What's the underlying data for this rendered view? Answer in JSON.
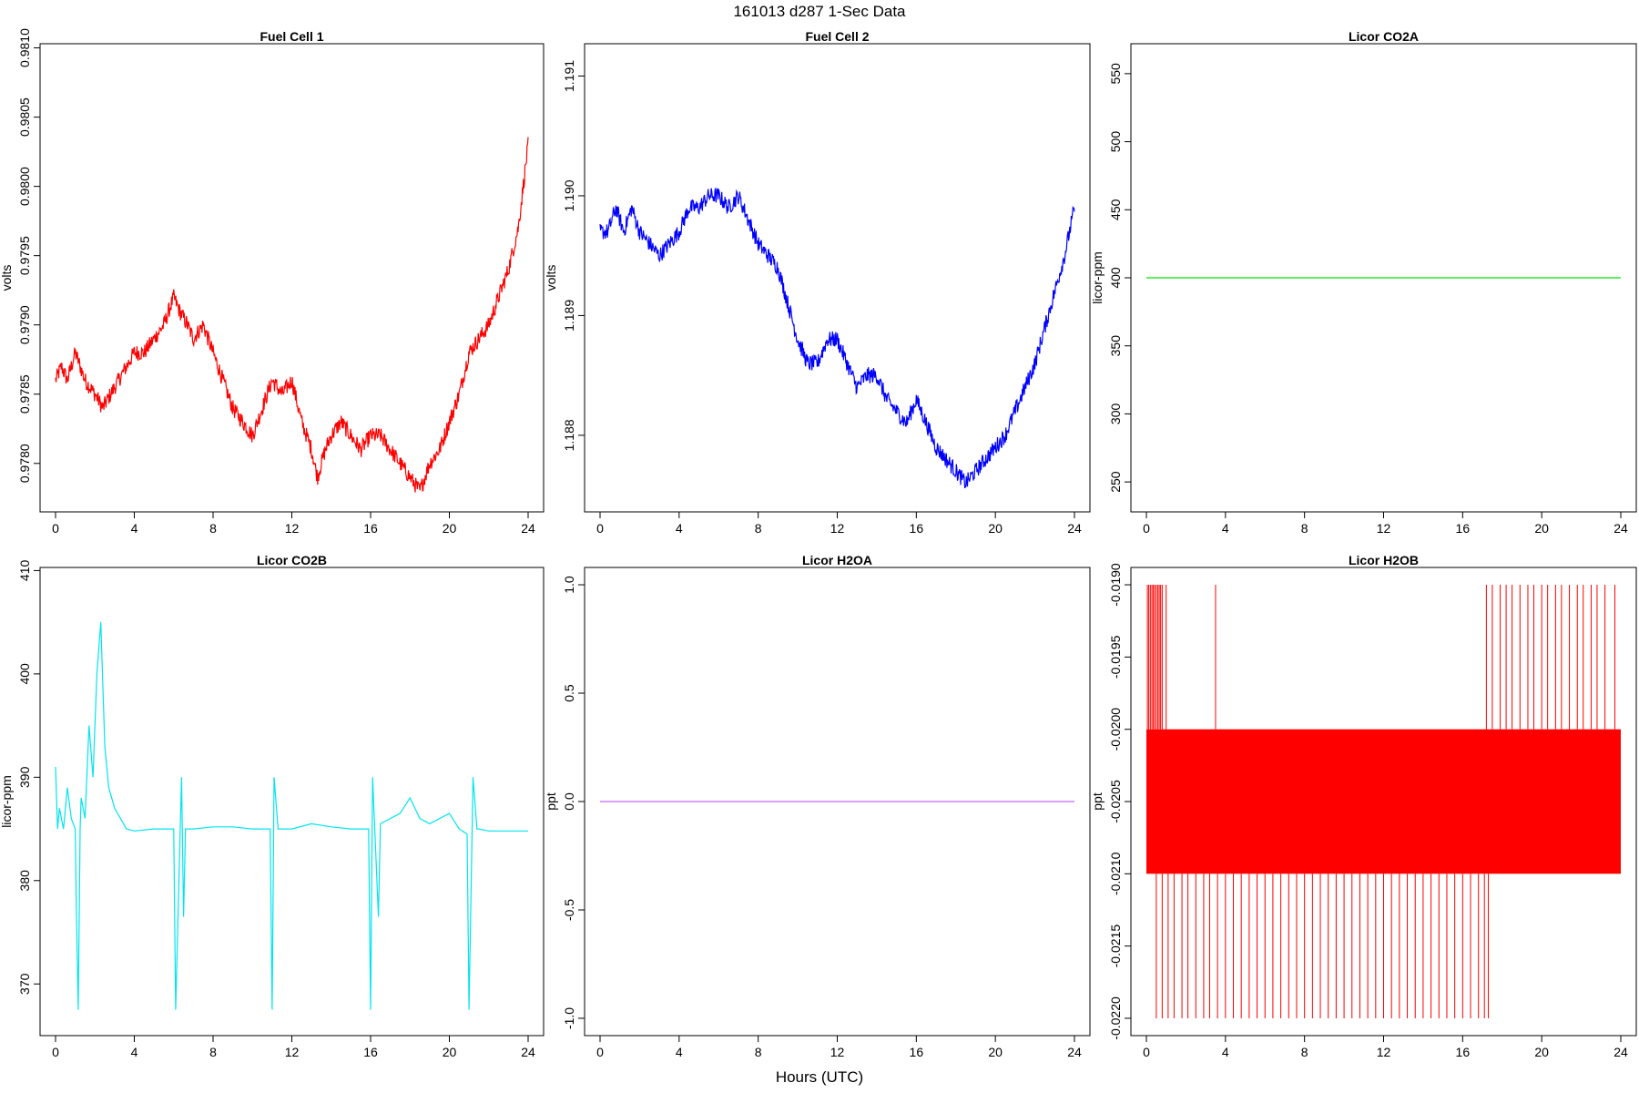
{
  "suptitle": "161013   d287   1-Sec Data",
  "xlabel": "Hours (UTC)",
  "chart_data": [
    {
      "type": "line",
      "title": "Fuel Cell 1",
      "ylabel": "volts",
      "color": "#ff0000",
      "xlim": [
        0,
        24
      ],
      "ylim": [
        0.97765,
        0.98103
      ],
      "x_ticks": [
        0,
        4,
        8,
        12,
        16,
        20,
        24
      ],
      "x_tick_labels": [
        "0",
        "4",
        "8",
        "12",
        "16",
        "20",
        "24"
      ],
      "y_ticks": [
        0.978,
        0.9785,
        0.979,
        0.9795,
        0.98,
        0.9805,
        0.981
      ],
      "y_tick_labels": [
        "0.9780",
        "0.9785",
        "0.9790",
        "0.9795",
        "0.9800",
        "0.9805",
        "0.9810"
      ],
      "series": [
        {
          "x": [
            0,
            0.3,
            0.6,
            1.0,
            1.5,
            2.0,
            2.4,
            2.8,
            3.2,
            3.6,
            4.0,
            4.5,
            5.0,
            5.5,
            6.0,
            6.3,
            6.7,
            7.0,
            7.5,
            8.0,
            8.5,
            9.0,
            9.5,
            10.0,
            10.5,
            11.0,
            11.5,
            12.0,
            12.5,
            13.0,
            13.3,
            13.7,
            14.0,
            14.5,
            15.0,
            15.5,
            16.0,
            16.5,
            17.0,
            17.5,
            18.0,
            18.5,
            19.0,
            19.5,
            20.0,
            20.5,
            21.0,
            21.5,
            22.0,
            22.5,
            23.0,
            23.5,
            24.0
          ],
          "y": [
            0.9786,
            0.9787,
            0.9786,
            0.9788,
            0.9786,
            0.9785,
            0.9784,
            0.9785,
            0.9786,
            0.9787,
            0.9788,
            0.9788,
            0.9789,
            0.979,
            0.9792,
            0.9791,
            0.979,
            0.9789,
            0.979,
            0.9788,
            0.9786,
            0.9784,
            0.9783,
            0.9782,
            0.9784,
            0.9786,
            0.9785,
            0.9786,
            0.9783,
            0.9781,
            0.9779,
            0.9781,
            0.9782,
            0.9783,
            0.9782,
            0.9781,
            0.9782,
            0.9782,
            0.9781,
            0.978,
            0.9779,
            0.9778,
            0.978,
            0.9781,
            0.9783,
            0.9785,
            0.9788,
            0.9789,
            0.979,
            0.9792,
            0.9794,
            0.9797,
            0.9803
          ]
        }
      ]
    },
    {
      "type": "line",
      "title": "Fuel Cell 2",
      "ylabel": "volts",
      "color": "#0000ff",
      "xlim": [
        0,
        24
      ],
      "ylim": [
        1.18736,
        1.19127
      ],
      "x_ticks": [
        0,
        4,
        8,
        12,
        16,
        20,
        24
      ],
      "x_tick_labels": [
        "0",
        "4",
        "8",
        "12",
        "16",
        "20",
        "24"
      ],
      "y_ticks": [
        1.188,
        1.189,
        1.19,
        1.191
      ],
      "y_tick_labels": [
        "1.188",
        "1.189",
        "1.190",
        "1.191"
      ],
      "series": [
        {
          "x": [
            0,
            0.4,
            0.8,
            1.2,
            1.6,
            2.0,
            2.5,
            3.0,
            3.5,
            4.0,
            4.5,
            5.0,
            5.5,
            6.0,
            6.5,
            7.0,
            7.5,
            8.0,
            8.5,
            9.0,
            9.5,
            10.0,
            10.5,
            11.0,
            11.5,
            12.0,
            12.5,
            13.0,
            13.5,
            14.0,
            14.5,
            15.0,
            15.5,
            16.0,
            16.5,
            17.0,
            17.5,
            18.0,
            18.5,
            19.0,
            19.5,
            20.0,
            20.5,
            21.0,
            21.5,
            22.0,
            22.5,
            23.0,
            23.5,
            24.0
          ],
          "y": [
            1.1897,
            1.1897,
            1.1899,
            1.1897,
            1.1899,
            1.1897,
            1.1896,
            1.1895,
            1.1896,
            1.1897,
            1.1899,
            1.1899,
            1.19,
            1.19,
            1.1899,
            1.19,
            1.1898,
            1.1896,
            1.1895,
            1.1894,
            1.1891,
            1.1888,
            1.1886,
            1.1886,
            1.1888,
            1.1888,
            1.1886,
            1.1884,
            1.1885,
            1.1885,
            1.1883,
            1.1882,
            1.1881,
            1.1883,
            1.1881,
            1.1879,
            1.1878,
            1.1877,
            1.1876,
            1.1877,
            1.1878,
            1.1879,
            1.188,
            1.1882,
            1.1884,
            1.1886,
            1.1889,
            1.1892,
            1.1895,
            1.1899
          ]
        }
      ]
    },
    {
      "type": "line",
      "title": "Licor CO2A",
      "ylabel": "licor-ppm",
      "color": "#00e600",
      "xlim": [
        0,
        24
      ],
      "ylim": [
        228,
        572
      ],
      "x_ticks": [
        0,
        4,
        8,
        12,
        16,
        20,
        24
      ],
      "x_tick_labels": [
        "0",
        "4",
        "8",
        "12",
        "16",
        "20",
        "24"
      ],
      "y_ticks": [
        250,
        300,
        350,
        400,
        450,
        500,
        550
      ],
      "y_tick_labels": [
        "250",
        "300",
        "350",
        "400",
        "450",
        "500",
        "550"
      ],
      "series": [
        {
          "x": [
            0,
            24
          ],
          "y": [
            400,
            400
          ]
        }
      ]
    },
    {
      "type": "line",
      "title": "Licor CO2B",
      "ylabel": "licor-ppm",
      "color": "#00e5ee",
      "xlim": [
        0,
        24
      ],
      "ylim": [
        365,
        410.3
      ],
      "x_ticks": [
        0,
        4,
        8,
        12,
        16,
        20,
        24
      ],
      "x_tick_labels": [
        "0",
        "4",
        "8",
        "12",
        "16",
        "20",
        "24"
      ],
      "y_ticks": [
        370,
        380,
        390,
        400,
        410
      ],
      "y_tick_labels": [
        "370",
        "380",
        "390",
        "400",
        "410"
      ],
      "series": [
        {
          "x": [
            0,
            0.1,
            0.2,
            0.4,
            0.6,
            0.8,
            1.0,
            1.05,
            1.15,
            1.25,
            1.3,
            1.5,
            1.7,
            1.9,
            2.1,
            2.3,
            2.5,
            2.7,
            3.0,
            3.3,
            3.6,
            4.0,
            5.0,
            6.0,
            6.1,
            6.4,
            6.5,
            6.6,
            7.0,
            8.0,
            9.0,
            10.0,
            10.9,
            11.0,
            11.1,
            11.3,
            11.4,
            12.0,
            13.0,
            14.0,
            15.0,
            15.9,
            16.0,
            16.1,
            16.4,
            16.5,
            17.0,
            17.5,
            18.0,
            18.5,
            19.0,
            19.5,
            20.0,
            20.5,
            20.9,
            21.0,
            21.2,
            21.4,
            21.5,
            22.0,
            23.0,
            24.0
          ],
          "y": [
            391,
            385,
            387,
            385,
            389,
            386,
            385,
            378,
            367.5,
            385,
            388,
            386,
            395,
            390,
            400,
            405,
            393,
            389,
            387,
            386,
            385,
            384.8,
            385,
            385,
            367.5,
            390,
            376.5,
            385,
            385,
            385.2,
            385.2,
            385,
            385,
            367.5,
            390,
            385,
            385,
            385,
            385.5,
            385.2,
            385,
            385,
            367.5,
            390,
            376.5,
            385.5,
            386,
            386.5,
            388,
            386,
            385.5,
            386,
            386.5,
            385,
            384.5,
            367.5,
            390,
            385,
            385,
            384.8,
            384.8,
            384.8
          ]
        }
      ]
    },
    {
      "type": "line",
      "title": "Licor H2OA",
      "ylabel": "ppt",
      "color": "#cc66ff",
      "xlim": [
        0,
        24
      ],
      "ylim": [
        -1.08,
        1.08
      ],
      "x_ticks": [
        0,
        4,
        8,
        12,
        16,
        20,
        24
      ],
      "x_tick_labels": [
        "0",
        "4",
        "8",
        "12",
        "16",
        "20",
        "24"
      ],
      "y_ticks": [
        -1.0,
        -0.5,
        0.0,
        0.5,
        1.0
      ],
      "y_tick_labels": [
        "-1.0",
        "-0.5",
        "0.0",
        "0.5",
        "1.0"
      ],
      "series": [
        {
          "x": [
            0,
            24
          ],
          "y": [
            0,
            0
          ]
        }
      ]
    },
    {
      "type": "line",
      "title": "Licor H2OB",
      "ylabel": "ppt",
      "color": "#ff0000",
      "xlim": [
        0,
        24
      ],
      "ylim": [
        -0.02212,
        -0.01888
      ],
      "x_ticks": [
        0,
        4,
        8,
        12,
        16,
        20,
        24
      ],
      "x_tick_labels": [
        "0",
        "4",
        "8",
        "12",
        "16",
        "20",
        "24"
      ],
      "y_ticks": [
        -0.022,
        -0.0215,
        -0.021,
        -0.0205,
        -0.02,
        -0.0195,
        -0.019
      ],
      "y_tick_labels": [
        "-0.0220",
        "-0.0215",
        "-0.0210",
        "-0.0205",
        "-0.0200",
        "-0.0195",
        "-0.0190"
      ],
      "series": [
        {
          "levels": [
            -0.02,
            -0.021
          ],
          "band": [
            -0.021,
            -0.02
          ],
          "spikes_up_x": [
            0.05,
            0.12,
            0.2,
            0.28,
            0.35,
            0.42,
            0.5,
            0.58,
            0.65,
            0.72,
            0.8,
            1.0,
            3.5,
            17.2,
            17.5,
            17.9,
            18.2,
            18.5,
            18.9,
            19.3,
            19.6,
            20.0,
            20.3,
            20.7,
            21.0,
            21.4,
            21.8,
            22.1,
            22.5,
            22.8,
            23.2,
            23.7
          ],
          "spikes_down_x": [
            0.5,
            0.8,
            1.1,
            1.4,
            1.8,
            2.1,
            2.5,
            2.9,
            3.2,
            3.6,
            4.0,
            4.4,
            4.8,
            5.2,
            5.6,
            6.0,
            6.4,
            6.8,
            7.2,
            7.6,
            8.0,
            8.4,
            8.8,
            9.2,
            9.6,
            10.0,
            10.4,
            10.8,
            11.2,
            11.6,
            12.0,
            12.4,
            12.8,
            13.2,
            13.6,
            14.0,
            14.4,
            14.8,
            15.2,
            15.6,
            16.0,
            16.4,
            16.8,
            17.1,
            17.3
          ],
          "band_x": [
            0,
            24
          ]
        }
      ]
    }
  ]
}
